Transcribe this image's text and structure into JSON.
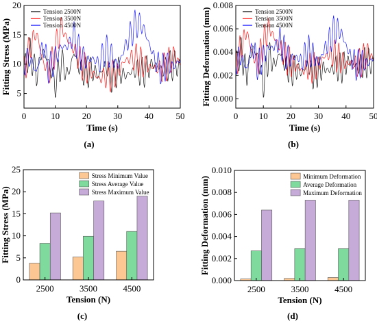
{
  "colors": {
    "tension_2500": "#000000",
    "tension_3500": "#ff0000",
    "tension_4500": "#0000ff",
    "stress_min": "#fcc792",
    "stress_avg": "#7fda9d",
    "stress_max": "#c6aad7",
    "axis": "#000000"
  },
  "chart_data": [
    {
      "type": "line",
      "panel_label": "(a)",
      "xlabel": "Time (s)",
      "ylabel": "Fitting Stress (MPa)",
      "xlim": [
        0,
        50
      ],
      "ylim": [
        2.5,
        20
      ],
      "xticks": [
        0,
        10,
        20,
        30,
        40,
        50
      ],
      "yticks": [
        5,
        10,
        15,
        20
      ],
      "legend": "top-left",
      "x": [
        0,
        2,
        4,
        6,
        8,
        10,
        12,
        14,
        16,
        18,
        20,
        22,
        24,
        26,
        28,
        30,
        32,
        34,
        36,
        38,
        40,
        42,
        44,
        46,
        48,
        50
      ],
      "series": [
        {
          "name": "Tension 2500N",
          "color": "#000000",
          "values": [
            9.5,
            12.0,
            8.0,
            12.5,
            10.0,
            6.5,
            10.5,
            8.0,
            12.0,
            9.0,
            8.5,
            9.0,
            8.0,
            10.0,
            7.5,
            9.0,
            8.0,
            8.5,
            9.0,
            8.5,
            9.5,
            10.0,
            9.0,
            9.5,
            10.0,
            9.5
          ]
        },
        {
          "name": "Tension 3500N",
          "color": "#ff0000",
          "values": [
            9.0,
            13.0,
            15.5,
            10.5,
            8.5,
            12.5,
            16.5,
            14.0,
            12.5,
            10.5,
            9.0,
            8.5,
            7.5,
            8.0,
            8.0,
            8.5,
            10.5,
            11.0,
            11.0,
            10.0,
            9.5,
            9.5,
            9.0,
            10.0,
            11.5,
            10.0
          ]
        },
        {
          "name": "Tension 4500N",
          "color": "#0000ff",
          "values": [
            10.5,
            11.0,
            8.5,
            13.5,
            9.0,
            11.0,
            13.0,
            13.0,
            15.0,
            11.5,
            10.5,
            11.0,
            10.0,
            12.5,
            11.5,
            9.5,
            12.5,
            15.0,
            17.0,
            16.5,
            13.5,
            10.5,
            9.0,
            10.0,
            9.5,
            11.0
          ]
        }
      ]
    },
    {
      "type": "line",
      "panel_label": "(b)",
      "xlabel": "Time (s)",
      "ylabel": "Fitting Deformation (mm)",
      "xlim": [
        0,
        50
      ],
      "ylim": [
        -0.0008,
        0.008
      ],
      "xticks": [
        0,
        10,
        20,
        30,
        40,
        50
      ],
      "yticks": [
        "0.000",
        "0.002",
        "0.004",
        "0.006",
        "0.008"
      ],
      "legend": "top-left",
      "x": [
        0,
        2,
        4,
        6,
        8,
        10,
        12,
        14,
        16,
        18,
        20,
        22,
        24,
        26,
        28,
        30,
        32,
        34,
        36,
        38,
        40,
        42,
        44,
        46,
        48,
        50
      ],
      "series": [
        {
          "name": "Tension 2500N",
          "color": "#000000",
          "values": [
            0.003,
            0.004,
            0.002,
            0.0045,
            0.0035,
            0.0012,
            0.0038,
            0.0028,
            0.004,
            0.0028,
            0.0024,
            0.0026,
            0.0022,
            0.003,
            0.002,
            0.0024,
            0.0026,
            0.0024,
            0.0028,
            0.0026,
            0.003,
            0.0032,
            0.0027,
            0.003,
            0.0032,
            0.0029
          ]
        },
        {
          "name": "Tension 3500N",
          "color": "#ff0000",
          "values": [
            0.003,
            0.0045,
            0.0058,
            0.0038,
            0.003,
            0.0048,
            0.0062,
            0.0052,
            0.0045,
            0.0036,
            0.003,
            0.0028,
            0.0024,
            0.0027,
            0.0027,
            0.0028,
            0.0036,
            0.0038,
            0.0038,
            0.0033,
            0.003,
            0.0031,
            0.0029,
            0.0033,
            0.004,
            0.0034
          ]
        },
        {
          "name": "Tension 4500N",
          "color": "#0000ff",
          "values": [
            0.0033,
            0.0036,
            0.0025,
            0.0046,
            0.0028,
            0.0036,
            0.0044,
            0.0044,
            0.005,
            0.0038,
            0.0034,
            0.0036,
            0.0032,
            0.0042,
            0.0038,
            0.003,
            0.0042,
            0.005,
            0.006,
            0.0058,
            0.0046,
            0.0034,
            0.0028,
            0.0032,
            0.003,
            0.0036
          ]
        }
      ]
    },
    {
      "type": "bar",
      "panel_label": "(c)",
      "xlabel": "Tension (N)",
      "ylabel": "Fitting Stress (MPa)",
      "categories": [
        "2500",
        "3500",
        "4500"
      ],
      "ylim": [
        0,
        25
      ],
      "yticks": [
        0,
        5,
        10,
        15,
        20,
        25
      ],
      "legend": "top-right",
      "series": [
        {
          "name": "Stress Minimum Value",
          "color": "#fcc792",
          "values": [
            3.8,
            5.2,
            6.5
          ]
        },
        {
          "name": "Stress Average Value",
          "color": "#7fda9d",
          "values": [
            8.3,
            9.9,
            11.0
          ]
        },
        {
          "name": "Stress Maximum Value",
          "color": "#c6aad7",
          "values": [
            15.2,
            17.9,
            19.0
          ]
        }
      ]
    },
    {
      "type": "bar",
      "panel_label": "(d)",
      "xlabel": "Tension (N)",
      "ylabel": "Fitting Deformation (mm)",
      "categories": [
        "2500",
        "3500",
        "4500"
      ],
      "ylim": [
        0,
        0.01
      ],
      "yticks": [
        "0.000",
        "0.002",
        "0.004",
        "0.006",
        "0.008",
        "0.010"
      ],
      "legend": "top-right",
      "series": [
        {
          "name": "Minimum Deformation",
          "color": "#fcc792",
          "values": [
            0.00015,
            0.0002,
            0.00028
          ]
        },
        {
          "name": "Average Deformation",
          "color": "#7fda9d",
          "values": [
            0.0027,
            0.0029,
            0.0029
          ]
        },
        {
          "name": "Maximum Deformation",
          "color": "#c6aad7",
          "values": [
            0.0064,
            0.0073,
            0.0073
          ]
        }
      ]
    }
  ]
}
